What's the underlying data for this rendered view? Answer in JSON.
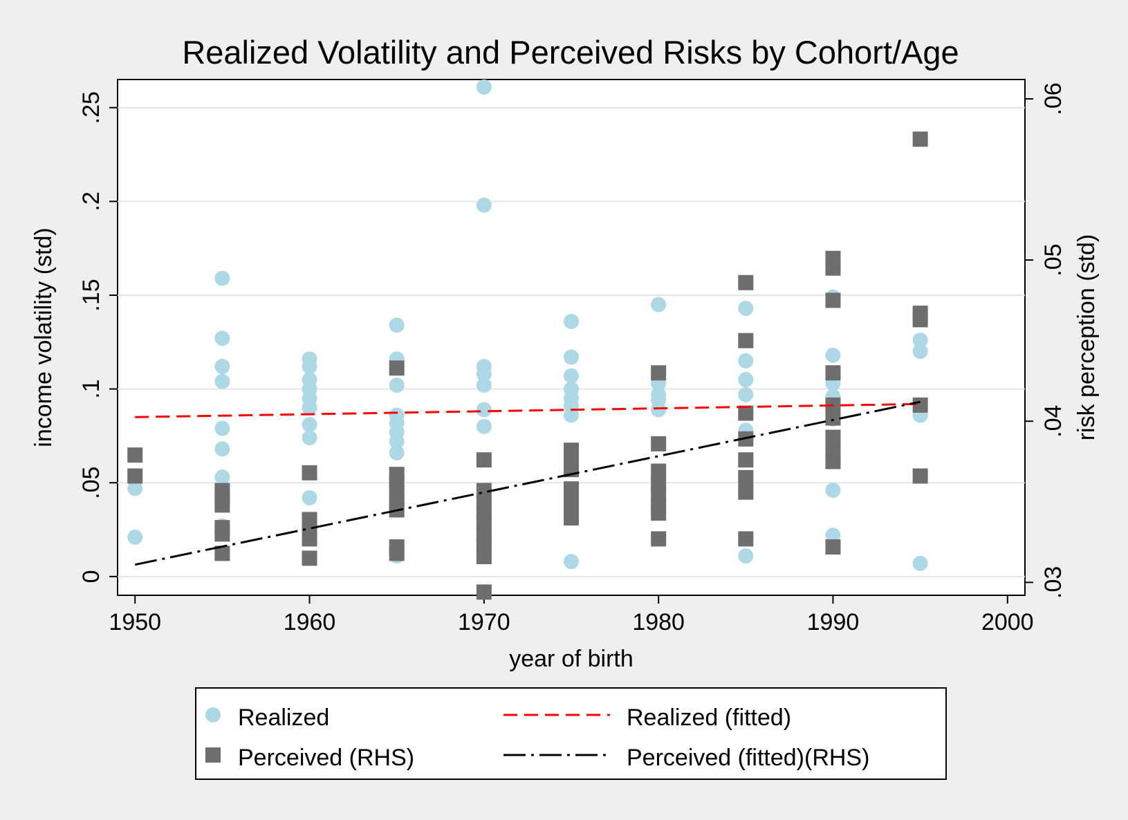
{
  "chart_data": {
    "type": "scatter",
    "title": "Realized Volatility and Perceived Risks by Cohort/Age",
    "xlabel": "year of birth",
    "ylabel": "income volatility (std)",
    "y2label": "risk perception (std)",
    "xlim": [
      1949,
      2001
    ],
    "ylim": [
      -0.01,
      0.265
    ],
    "y2lim": [
      0.0292,
      0.0612
    ],
    "x_ticks": [
      1950,
      1960,
      1970,
      1980,
      1990,
      2000
    ],
    "y_ticks": [
      0,
      0.05,
      0.1,
      0.15,
      0.2,
      0.25
    ],
    "y_tick_labels": [
      "0",
      ".05",
      ".1",
      ".15",
      ".2",
      ".25"
    ],
    "y2_ticks": [
      0.03,
      0.04,
      0.05,
      0.06
    ],
    "y2_tick_labels": [
      ".03",
      ".04",
      ".05",
      ".06"
    ],
    "grid": true,
    "legend_position": "bottom",
    "colors": {
      "realized": "#add8e6",
      "perceived": "#6e6e6e",
      "realized_fit": "#ff0000",
      "perceived_fit": "#000000",
      "plot_bg": "#ffffff",
      "page_bg": "#efefef",
      "grid": "#e6e6e6"
    },
    "series": [
      {
        "name": "Realized",
        "axis": "left",
        "marker": "circle",
        "points": [
          [
            1950,
            0.047
          ],
          [
            1950,
            0.021
          ],
          [
            1955,
            0.159
          ],
          [
            1955,
            0.127
          ],
          [
            1955,
            0.112
          ],
          [
            1955,
            0.104
          ],
          [
            1955,
            0.079
          ],
          [
            1955,
            0.068
          ],
          [
            1955,
            0.053
          ],
          [
            1955,
            0.043
          ],
          [
            1955,
            0.027
          ],
          [
            1960,
            0.116
          ],
          [
            1960,
            0.112
          ],
          [
            1960,
            0.105
          ],
          [
            1960,
            0.1
          ],
          [
            1960,
            0.095
          ],
          [
            1960,
            0.09
          ],
          [
            1960,
            0.081
          ],
          [
            1960,
            0.074
          ],
          [
            1960,
            0.042
          ],
          [
            1960,
            0.026
          ],
          [
            1965,
            0.134
          ],
          [
            1965,
            0.116
          ],
          [
            1965,
            0.102
          ],
          [
            1965,
            0.086
          ],
          [
            1965,
            0.082
          ],
          [
            1965,
            0.077
          ],
          [
            1965,
            0.072
          ],
          [
            1965,
            0.066
          ],
          [
            1965,
            0.011
          ],
          [
            1970,
            0.261
          ],
          [
            1970,
            0.198
          ],
          [
            1970,
            0.112
          ],
          [
            1970,
            0.108
          ],
          [
            1970,
            0.102
          ],
          [
            1970,
            0.089
          ],
          [
            1970,
            0.08
          ],
          [
            1975,
            0.136
          ],
          [
            1975,
            0.117
          ],
          [
            1975,
            0.107
          ],
          [
            1975,
            0.1
          ],
          [
            1975,
            0.095
          ],
          [
            1975,
            0.091
          ],
          [
            1975,
            0.086
          ],
          [
            1975,
            0.032
          ],
          [
            1975,
            0.008
          ],
          [
            1980,
            0.145
          ],
          [
            1980,
            0.108
          ],
          [
            1980,
            0.103
          ],
          [
            1980,
            0.097
          ],
          [
            1980,
            0.094
          ],
          [
            1980,
            0.089
          ],
          [
            1985,
            0.143
          ],
          [
            1985,
            0.115
          ],
          [
            1985,
            0.105
          ],
          [
            1985,
            0.097
          ],
          [
            1985,
            0.078
          ],
          [
            1985,
            0.011
          ],
          [
            1990,
            0.149
          ],
          [
            1990,
            0.118
          ],
          [
            1990,
            0.103
          ],
          [
            1990,
            0.096
          ],
          [
            1990,
            0.084
          ],
          [
            1990,
            0.063
          ],
          [
            1990,
            0.046
          ],
          [
            1990,
            0.022
          ],
          [
            1995,
            0.126
          ],
          [
            1995,
            0.12
          ],
          [
            1995,
            0.086
          ],
          [
            1995,
            0.007
          ]
        ]
      },
      {
        "name": "Perceived (RHS)",
        "axis": "right",
        "marker": "square",
        "points": [
          [
            1950,
            0.0379
          ],
          [
            1950,
            0.0366
          ],
          [
            1955,
            0.0357
          ],
          [
            1955,
            0.0353
          ],
          [
            1955,
            0.0348
          ],
          [
            1955,
            0.0334
          ],
          [
            1955,
            0.033
          ],
          [
            1955,
            0.0318
          ],
          [
            1960,
            0.0368
          ],
          [
            1960,
            0.0339
          ],
          [
            1960,
            0.0332
          ],
          [
            1960,
            0.0327
          ],
          [
            1960,
            0.0315
          ],
          [
            1965,
            0.0433
          ],
          [
            1965,
            0.0367
          ],
          [
            1965,
            0.0362
          ],
          [
            1965,
            0.0356
          ],
          [
            1965,
            0.035
          ],
          [
            1965,
            0.0345
          ],
          [
            1965,
            0.0322
          ],
          [
            1965,
            0.0318
          ],
          [
            1970,
            0.0376
          ],
          [
            1970,
            0.0357
          ],
          [
            1970,
            0.035
          ],
          [
            1970,
            0.0343
          ],
          [
            1970,
            0.0337
          ],
          [
            1970,
            0.033
          ],
          [
            1970,
            0.0323
          ],
          [
            1970,
            0.0316
          ],
          [
            1970,
            0.0294
          ],
          [
            1975,
            0.0382
          ],
          [
            1975,
            0.0377
          ],
          [
            1975,
            0.037
          ],
          [
            1975,
            0.0358
          ],
          [
            1975,
            0.0354
          ],
          [
            1975,
            0.035
          ],
          [
            1975,
            0.0345
          ],
          [
            1975,
            0.034
          ],
          [
            1980,
            0.043
          ],
          [
            1980,
            0.0386
          ],
          [
            1980,
            0.0369
          ],
          [
            1980,
            0.0362
          ],
          [
            1980,
            0.0355
          ],
          [
            1980,
            0.0348
          ],
          [
            1980,
            0.0343
          ],
          [
            1980,
            0.0327
          ],
          [
            1985,
            0.0486
          ],
          [
            1985,
            0.045
          ],
          [
            1985,
            0.0405
          ],
          [
            1985,
            0.0389
          ],
          [
            1985,
            0.0376
          ],
          [
            1985,
            0.0365
          ],
          [
            1985,
            0.0356
          ],
          [
            1985,
            0.0327
          ],
          [
            1990,
            0.0501
          ],
          [
            1990,
            0.0495
          ],
          [
            1990,
            0.0475
          ],
          [
            1990,
            0.043
          ],
          [
            1990,
            0.041
          ],
          [
            1990,
            0.0402
          ],
          [
            1990,
            0.039
          ],
          [
            1990,
            0.0381
          ],
          [
            1990,
            0.0375
          ],
          [
            1990,
            0.0322
          ],
          [
            1995,
            0.0575
          ],
          [
            1995,
            0.0467
          ],
          [
            1995,
            0.0463
          ],
          [
            1995,
            0.041
          ],
          [
            1995,
            0.0366
          ]
        ]
      },
      {
        "name": "Realized (fitted)",
        "axis": "left",
        "line": "dashed",
        "points": [
          [
            1950,
            0.085
          ],
          [
            1995,
            0.092
          ]
        ]
      },
      {
        "name": "Perceived (fitted)(RHS)",
        "axis": "right",
        "line": "dash-dot",
        "points": [
          [
            1950,
            0.0311
          ],
          [
            1995,
            0.0412
          ]
        ]
      }
    ]
  }
}
